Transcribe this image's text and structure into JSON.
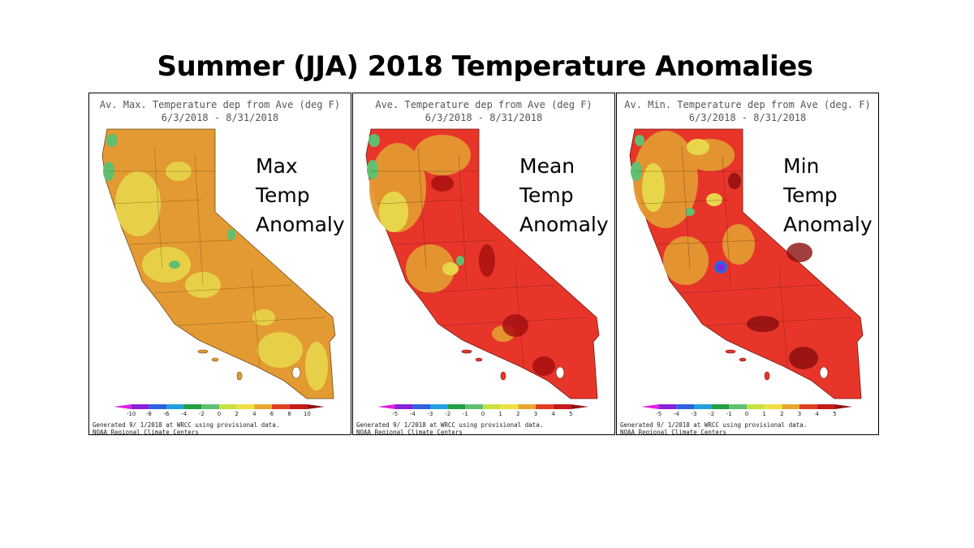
{
  "title": "Summer (JJA) 2018 Temperature Anomalies",
  "panels": [
    {
      "header_line1": "Av. Max. Temperature dep from Ave (deg F)",
      "header_line2": "6/3/2018 - 8/31/2018",
      "label": [
        "Max",
        "Temp",
        "Anomaly"
      ],
      "legend_ticks": [
        "-10",
        "-8",
        "-6",
        "-4",
        "-2",
        "0",
        "2",
        "4",
        "6",
        "8",
        "10"
      ],
      "credit_line1": "Generated 9/ 1/2018 at WRCC using provisional data.",
      "credit_line2": "NOAA Regional Climate Centers",
      "map_base": "#e39a32"
    },
    {
      "header_line1": "Ave. Temperature dep from Ave (deg F)",
      "header_line2": "6/3/2018 - 8/31/2018",
      "label": [
        "Mean",
        "Temp",
        "Anomaly"
      ],
      "legend_ticks": [
        "-5",
        "-4",
        "-3",
        "-2",
        "-1",
        "0",
        "1",
        "2",
        "3",
        "4",
        "5"
      ],
      "credit_line1": "Generated 9/ 1/2018 at WRCC using provisional data.",
      "credit_line2": "NOAA Regional Climate Centers",
      "map_base": "#e8352a"
    },
    {
      "header_line1": "Av. Min. Temperature dep from Ave (deg. F)",
      "header_line2": "6/3/2018 - 8/31/2018",
      "label": [
        "Min",
        "Temp",
        "Anomaly"
      ],
      "legend_ticks": [
        "-5",
        "-4",
        "-3",
        "-2",
        "-1",
        "0",
        "1",
        "2",
        "3",
        "4",
        "5"
      ],
      "credit_line1": "Generated 9/ 1/2018 at WRCC using provisional data.",
      "credit_line2": "NOAA Regional Climate Centers",
      "map_base": "#e8352a"
    }
  ],
  "legend_colors": [
    "#e020e0",
    "#8a20d8",
    "#3060e0",
    "#20a0e0",
    "#20a040",
    "#60c070",
    "#c8e040",
    "#f0e040",
    "#e8a830",
    "#e04020",
    "#c81818",
    "#901010"
  ]
}
